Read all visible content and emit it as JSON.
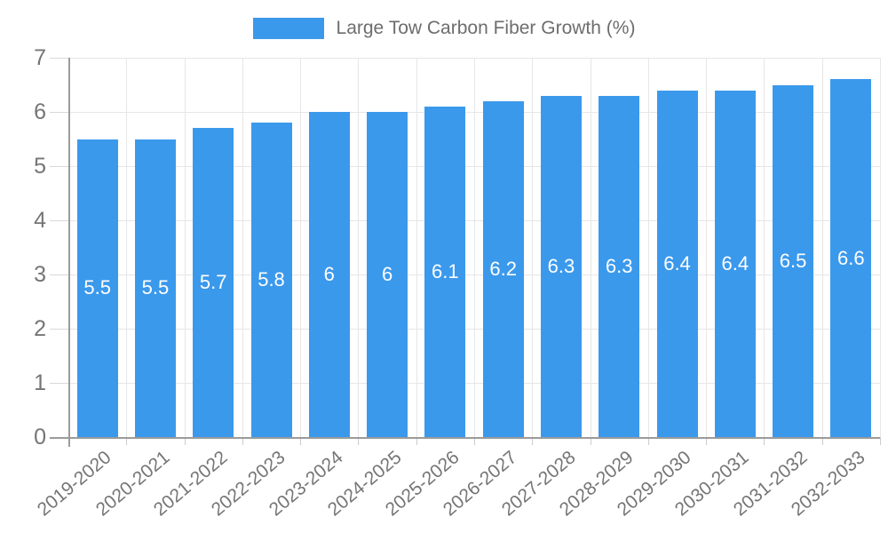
{
  "chart_data": {
    "type": "bar",
    "title": "Large Tow Carbon Fiber Growth (%)",
    "legend": {
      "label": "Large Tow Carbon Fiber Growth (%)",
      "position": "top"
    },
    "categories": [
      "2019-2020",
      "2020-2021",
      "2021-2022",
      "2022-2023",
      "2023-2024",
      "2024-2025",
      "2025-2026",
      "2026-2027",
      "2027-2028",
      "2028-2029",
      "2029-2030",
      "2030-2031",
      "2031-2032",
      "2032-2033"
    ],
    "values": [
      5.5,
      5.5,
      5.7,
      5.8,
      6,
      6,
      6.1,
      6.2,
      6.3,
      6.3,
      6.4,
      6.4,
      6.5,
      6.6
    ],
    "value_labels": [
      "5.5",
      "5.5",
      "5.7",
      "5.8",
      "6",
      "6",
      "6.1",
      "6.2",
      "6.3",
      "6.3",
      "6.4",
      "6.4",
      "6.5",
      "6.6"
    ],
    "xlabel": "",
    "ylabel": "",
    "ylim": [
      0,
      7
    ],
    "yticks": [
      0,
      1,
      2,
      3,
      4,
      5,
      6,
      7
    ],
    "grid": true,
    "colors": {
      "bar": "#3b99ec",
      "bar_value_label": "#ffffff",
      "axis_text": "#757575",
      "gridline": "#e6e6e6",
      "axis_line": "#9b9b9b"
    }
  }
}
